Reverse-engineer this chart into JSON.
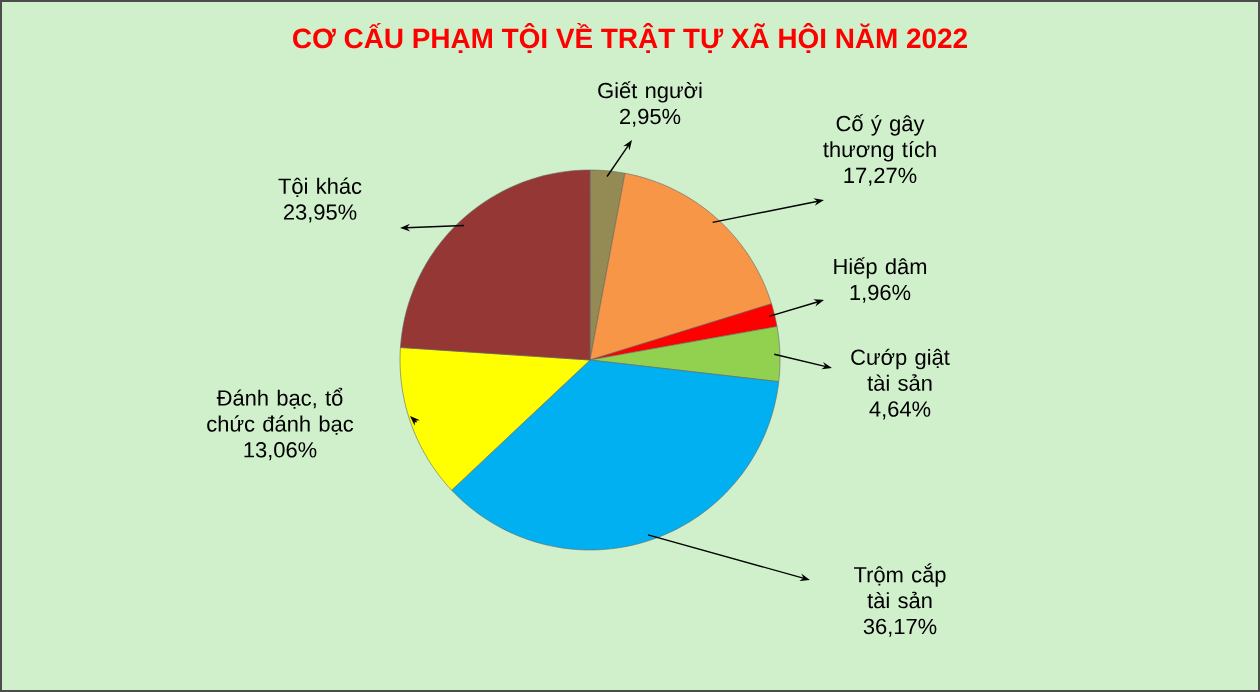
{
  "chart_data": {
    "type": "pie",
    "title": "CƠ CẤU PHẠM TỘI VỀ TRẬT TỰ XÃ HỘI NĂM 2022",
    "categories": [
      "Giết người",
      "Cố ý gây thương tích",
      "Hiếp dâm",
      "Cướp giật tài sản",
      "Trộm cắp tài sản",
      "Đánh bạc, tổ chức đánh bạc",
      "Tội khác"
    ],
    "values": [
      2.95,
      17.27,
      1.96,
      4.64,
      36.17,
      13.06,
      23.95
    ],
    "value_labels": [
      "2,95%",
      "17,27%",
      "1,96%",
      "4,64%",
      "36,17%",
      "13,06%",
      "23,95%"
    ],
    "colors": [
      "#948a54",
      "#f79646",
      "#ff0000",
      "#92d050",
      "#00b0f0",
      "#ffff00",
      "#953735"
    ]
  }
}
